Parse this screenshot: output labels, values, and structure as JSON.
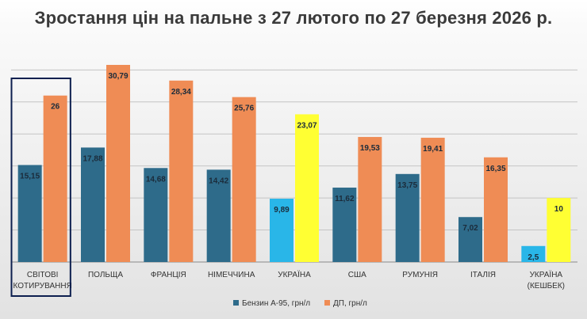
{
  "chart_data": {
    "type": "bar",
    "title": "Зростання цін на пальне з 27 лютого по 27 березня 2026 р.",
    "categories": [
      [
        "СВІТОВІ",
        "КОТИРУВАННЯ"
      ],
      [
        "ПОЛЬЩА"
      ],
      [
        "ФРАНЦІЯ"
      ],
      [
        "НІМЕЧЧИНА"
      ],
      [
        "УКРАЇНА"
      ],
      [
        "США"
      ],
      [
        "РУМУНІЯ"
      ],
      [
        "ІТАЛІЯ"
      ],
      [
        "УКРАЇНА",
        "(КЕШБЕК)"
      ]
    ],
    "series": [
      {
        "name": "Бензин А-95, грн/л",
        "color": "#2e6b8a",
        "values": [
          15.15,
          17.88,
          14.68,
          14.42,
          9.89,
          11.62,
          13.75,
          7.02,
          2.5
        ],
        "labels": [
          "15,15",
          "17,88",
          "14,68",
          "14,42",
          "9,89",
          "11,62",
          "13,75",
          "7,02",
          "2,5"
        ]
      },
      {
        "name": "ДП, грн/л",
        "color": "#ef8c55",
        "values": [
          26,
          30.79,
          28.34,
          25.76,
          23.07,
          19.53,
          19.41,
          16.35,
          10
        ],
        "labels": [
          "26",
          "30,79",
          "28,34",
          "25,76",
          "23,07",
          "19,53",
          "19,41",
          "16,35",
          "10"
        ]
      }
    ],
    "highlight_colors": {
      "ukraine_petrol": "#29b6e8",
      "ukraine_diesel": "#ffff33",
      "frame": "#0d1f4f"
    },
    "highlight_categories": [
      4,
      8
    ],
    "framed_category": 0,
    "ylim": [
      0,
      32
    ],
    "grid": true,
    "legend": "bottom-center"
  }
}
